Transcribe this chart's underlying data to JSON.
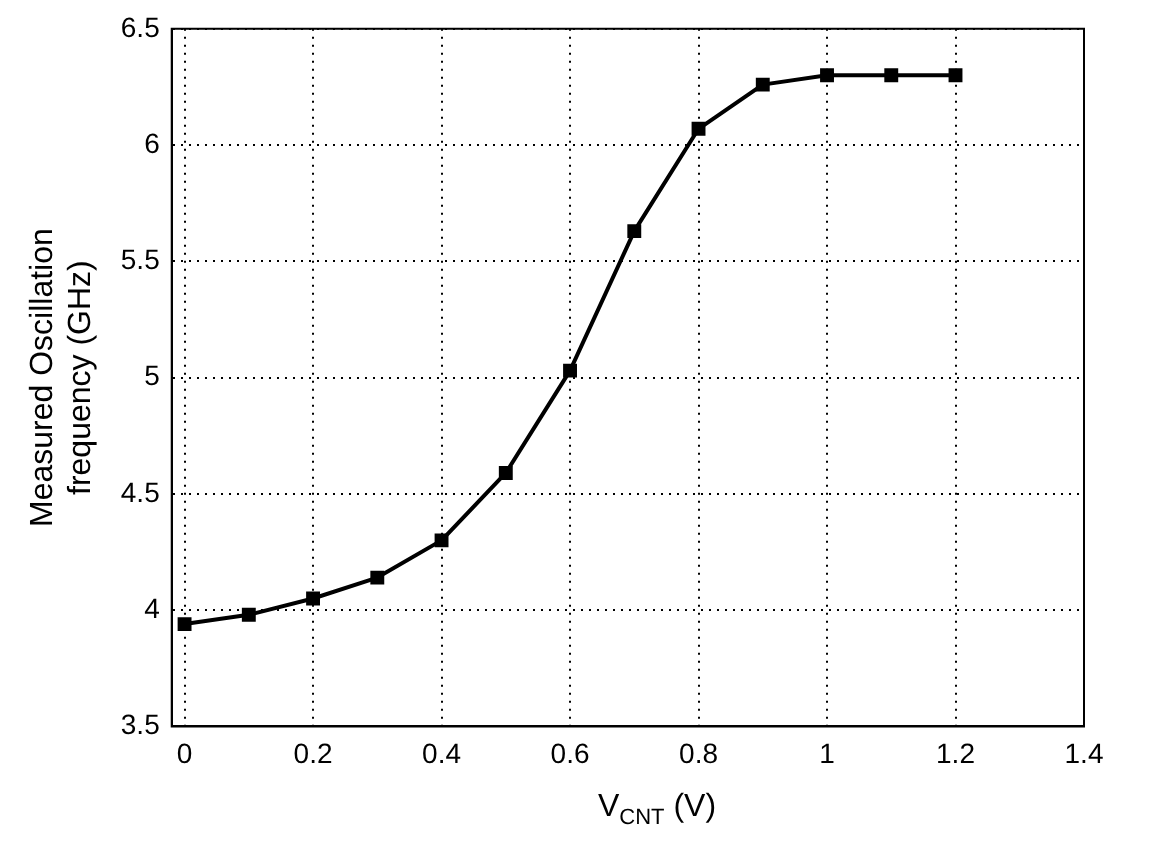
{
  "chart_data": {
    "type": "line",
    "xlabel": "V$_{CNT}$ (V)",
    "ylabel": "Measured Oscillation frequency (GHz)",
    "x": [
      0,
      0.1,
      0.2,
      0.3,
      0.4,
      0.5,
      0.6,
      0.7,
      0.8,
      0.9,
      1.0,
      1.1,
      1.2
    ],
    "series": [
      {
        "color": "#000000",
        "values": [
          3.94,
          3.98,
          4.05,
          4.14,
          4.3,
          4.59,
          5.03,
          5.63,
          6.07,
          6.26,
          6.3,
          6.3,
          6.3
        ]
      }
    ],
    "xlim": [
      -0.02,
      1.4
    ],
    "xticks": [
      0,
      0.2,
      0.4,
      0.6,
      0.8,
      1,
      1.2,
      1.4
    ],
    "ylim": [
      3.5,
      6.5
    ],
    "yticks": [
      3.5,
      4,
      4.5,
      5,
      5.5,
      6,
      6.5
    ],
    "grid": true,
    "legend": false,
    "marker": "square",
    "line_style": "solid"
  }
}
